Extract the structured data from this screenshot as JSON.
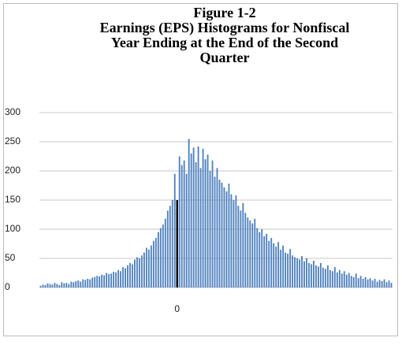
{
  "chart_data": {
    "type": "bar",
    "title": [
      "Figure 1-2",
      "Earnings (EPS) Histograms for Nonfiscal",
      "Year Ending at the End of the Second",
      "Quarter"
    ],
    "categories": [
      null,
      null,
      null,
      null,
      null,
      null,
      null,
      null,
      null,
      null,
      null,
      null,
      null,
      null,
      null,
      null,
      null,
      null,
      null,
      null,
      null,
      null,
      null,
      null,
      null,
      null,
      null,
      null,
      null,
      null,
      null,
      null,
      null,
      null,
      null,
      null,
      null,
      null,
      null,
      null,
      null,
      null,
      null,
      null,
      null,
      null,
      null,
      null,
      null,
      null,
      null,
      null,
      null,
      null,
      null,
      null,
      null,
      null,
      "0",
      null,
      null,
      null,
      null,
      null,
      null,
      null,
      null,
      null,
      null,
      null,
      null,
      null,
      null,
      null,
      null,
      null,
      null,
      null,
      null,
      null,
      null,
      null,
      null,
      null,
      null,
      null,
      null,
      null,
      null,
      null,
      null,
      null,
      null,
      null,
      null,
      null,
      null,
      null,
      null,
      null,
      null,
      null,
      null,
      null,
      null,
      null,
      null,
      null,
      null,
      null,
      null,
      null,
      null,
      null,
      null,
      null,
      null,
      null,
      null,
      null,
      null,
      null,
      null,
      null,
      null,
      null,
      null,
      null,
      null,
      null,
      null,
      null,
      null,
      null,
      null,
      null,
      null,
      null,
      null,
      null,
      null,
      null,
      null,
      null,
      null,
      null,
      null,
      null,
      null,
      null
    ],
    "values": [
      3,
      5,
      4,
      7,
      6,
      5,
      8,
      6,
      4,
      9,
      7,
      8,
      6,
      10,
      9,
      11,
      12,
      10,
      14,
      13,
      15,
      14,
      17,
      18,
      20,
      19,
      22,
      21,
      25,
      23,
      24,
      27,
      26,
      30,
      28,
      35,
      33,
      38,
      42,
      40,
      48,
      52,
      50,
      55,
      60,
      68,
      65,
      72,
      80,
      85,
      95,
      102,
      108,
      118,
      132,
      140,
      150,
      195,
      150,
      225,
      210,
      218,
      195,
      255,
      230,
      240,
      215,
      242,
      205,
      238,
      220,
      228,
      200,
      218,
      190,
      205,
      185,
      180,
      172,
      165,
      178,
      160,
      150,
      158,
      140,
      132,
      145,
      128,
      120,
      115,
      110,
      118,
      102,
      95,
      100,
      88,
      92,
      80,
      85,
      76,
      70,
      78,
      65,
      72,
      60,
      58,
      66,
      55,
      52,
      50,
      48,
      54,
      45,
      50,
      42,
      40,
      46,
      38,
      36,
      42,
      34,
      32,
      38,
      30,
      28,
      35,
      26,
      30,
      24,
      28,
      22,
      25,
      20,
      18,
      24,
      16,
      20,
      15,
      18,
      14,
      16,
      12,
      15,
      10,
      13,
      11,
      14,
      9,
      12,
      8
    ],
    "color": "#4f81bd",
    "highlight": {
      "index": 58,
      "color": "#000000"
    },
    "ylim": [
      0,
      300
    ],
    "yticks": [
      0,
      50,
      100,
      150,
      200,
      250,
      300
    ],
    "grid": true
  }
}
